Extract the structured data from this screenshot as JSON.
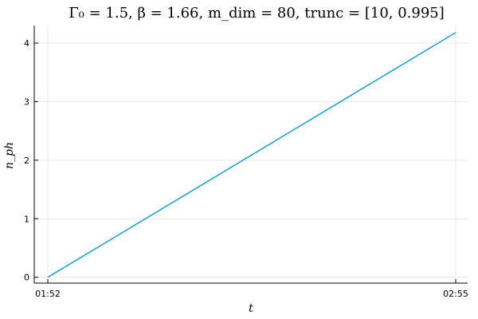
{
  "chart_data": {
    "type": "line",
    "title": "Γ₀ = 1.5, β = 1.66, m_dim = 80, trunc = [10, 0.995]",
    "xlabel": "t",
    "ylabel": "n_ph",
    "x_ticks": [
      "01:52",
      "02:55"
    ],
    "y_ticks": [
      0,
      1,
      2,
      3,
      4
    ],
    "xlim": [
      "01:52",
      "02:55"
    ],
    "ylim": [
      -0.1,
      4.3
    ],
    "grid": true,
    "legend": "none",
    "series": [
      {
        "color": "#009af9",
        "x": [
          "01:52",
          "02:55"
        ],
        "values": [
          0.0,
          4.18
        ]
      }
    ]
  }
}
